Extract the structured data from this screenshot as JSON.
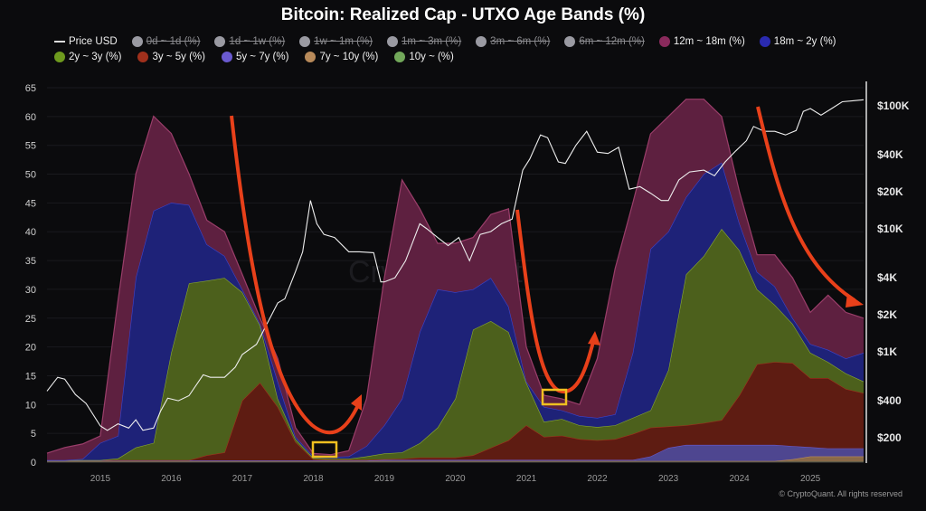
{
  "chart_data": {
    "type": "area",
    "stacked": true,
    "title": "Bitcoin: Realized Cap - UTXO Age Bands (%)",
    "xlabel": "",
    "ylabel": "",
    "xlim": [
      2014.25,
      2025.75
    ],
    "ylim": [
      0,
      65
    ],
    "y_ticks": [
      0,
      5,
      10,
      15,
      20,
      25,
      30,
      35,
      40,
      45,
      50,
      55,
      60,
      65
    ],
    "x_ticks": [
      "2015",
      "2016",
      "2017",
      "2018",
      "2019",
      "2020",
      "2021",
      "2022",
      "2023",
      "2024",
      "2025"
    ],
    "x_tick_values": [
      2015,
      2016,
      2017,
      2018,
      2019,
      2020,
      2021,
      2022,
      2023,
      2024,
      2025
    ],
    "y2_scale": "log",
    "y2_ticks": [
      {
        "label": "$100K",
        "value": 100000
      },
      {
        "label": "$40K",
        "value": 40000
      },
      {
        "label": "$20K",
        "value": 20000
      },
      {
        "label": "$10K",
        "value": 10000
      },
      {
        "label": "$4K",
        "value": 4000
      },
      {
        "label": "$2K",
        "value": 2000
      },
      {
        "label": "$1K",
        "value": 1000
      },
      {
        "label": "$400",
        "value": 400
      },
      {
        "label": "$200",
        "value": 200
      }
    ],
    "grid": true,
    "legend_position": "top-left",
    "legend": [
      {
        "label": "Price USD",
        "type": "line",
        "color": "#e0e0e0",
        "active": true
      },
      {
        "label": "0d ~ 1d (%)",
        "color": "#9a9aa2",
        "active": false
      },
      {
        "label": "1d ~ 1w (%)",
        "color": "#9a9aa2",
        "active": false
      },
      {
        "label": "1w ~ 1m (%)",
        "color": "#9a9aa2",
        "active": false
      },
      {
        "label": "1m ~ 3m (%)",
        "color": "#9a9aa2",
        "active": false
      },
      {
        "label": "3m ~ 6m (%)",
        "color": "#9a9aa2",
        "active": false
      },
      {
        "label": "6m ~ 12m (%)",
        "color": "#9a9aa2",
        "active": false
      },
      {
        "label": "12m ~ 18m (%)",
        "color": "#8a2a5c",
        "active": true
      },
      {
        "label": "18m ~ 2y (%)",
        "color": "#2a2ab0",
        "active": true
      },
      {
        "label": "2y ~ 3y (%)",
        "color": "#6e9a1e",
        "active": true
      },
      {
        "label": "3y ~ 5y (%)",
        "color": "#a0301c",
        "active": true
      },
      {
        "label": "5y ~ 7y (%)",
        "color": "#6a5ad0",
        "active": true
      },
      {
        "label": "7y ~ 10y (%)",
        "color": "#b88a5a",
        "active": true
      },
      {
        "label": "10y ~ (%)",
        "color": "#72a85a",
        "active": true
      }
    ],
    "x": [
      2014.25,
      2014.5,
      2014.75,
      2015.0,
      2015.25,
      2015.5,
      2015.75,
      2016.0,
      2016.25,
      2016.5,
      2016.75,
      2017.0,
      2017.25,
      2017.5,
      2017.75,
      2018.0,
      2018.25,
      2018.5,
      2018.75,
      2019.0,
      2019.25,
      2019.5,
      2019.75,
      2020.0,
      2020.25,
      2020.5,
      2020.75,
      2021.0,
      2021.25,
      2021.5,
      2021.75,
      2022.0,
      2022.25,
      2022.5,
      2022.75,
      2023.0,
      2023.25,
      2023.5,
      2023.75,
      2024.0,
      2024.25,
      2024.5,
      2024.75,
      2025.0,
      2025.25,
      2025.5,
      2025.75
    ],
    "series": [
      {
        "name": "10y ~ (%)",
        "fill": "#4f7a3a",
        "stroke": "#72a85a",
        "values": [
          0.1,
          0.1,
          0.1,
          0.1,
          0.1,
          0.1,
          0.1,
          0.1,
          0.1,
          0.1,
          0.1,
          0.1,
          0.1,
          0.1,
          0.1,
          0.1,
          0.1,
          0.1,
          0.1,
          0.1,
          0.1,
          0.1,
          0.1,
          0.1,
          0.1,
          0.1,
          0.1,
          0.1,
          0.1,
          0.1,
          0.1,
          0.1,
          0.1,
          0.1,
          0.1,
          0.1,
          0.1,
          0.1,
          0.1,
          0.1,
          0.1,
          0.1,
          0.1,
          0.1,
          0.1,
          0.1,
          0.1
        ]
      },
      {
        "name": "7y ~ 10y (%)",
        "fill": "#8a6a48",
        "stroke": "#b88a5a",
        "values": [
          0.1,
          0.1,
          0.1,
          0.1,
          0.1,
          0.1,
          0.1,
          0.1,
          0.1,
          0.1,
          0.1,
          0.1,
          0.1,
          0.1,
          0.1,
          0.1,
          0.1,
          0.1,
          0.1,
          0.1,
          0.1,
          0.1,
          0.1,
          0.1,
          0.1,
          0.1,
          0.1,
          0.1,
          0.1,
          0.1,
          0.1,
          0.1,
          0.1,
          0.1,
          0.1,
          0.1,
          0.1,
          0.1,
          0.1,
          0.1,
          0.1,
          0.1,
          0.4,
          0.9,
          0.9,
          0.9,
          0.9
        ]
      },
      {
        "name": "5y ~ 7y (%)",
        "fill": "#4e4690",
        "stroke": "#6a5ad0",
        "values": [
          0.1,
          0.1,
          0.1,
          0.1,
          0.1,
          0.1,
          0.1,
          0.1,
          0.1,
          0.1,
          0.1,
          0.1,
          0.1,
          0.1,
          0.1,
          0.1,
          0.1,
          0.1,
          0.1,
          0.2,
          0.2,
          0.2,
          0.2,
          0.2,
          0.2,
          0.2,
          0.2,
          0.2,
          0.2,
          0.2,
          0.2,
          0.2,
          0.2,
          0.2,
          0.8,
          2.3,
          2.8,
          2.8,
          2.8,
          2.8,
          2.8,
          2.8,
          2.3,
          1.6,
          1.4,
          1.4,
          1.4
        ]
      },
      {
        "name": "3y ~ 5y (%)",
        "fill": "#5e1c12",
        "stroke": "#a0301c",
        "values": [
          0.05,
          0.05,
          0.05,
          0.05,
          0.05,
          0.05,
          0.05,
          0.05,
          0.05,
          0.9,
          1.4,
          10.4,
          13.5,
          9.3,
          3.2,
          0.2,
          0.1,
          0.1,
          0.1,
          0.1,
          0.2,
          0.4,
          0.4,
          0.4,
          0.8,
          2.1,
          3.4,
          6.0,
          4.0,
          4.2,
          3.6,
          3.4,
          3.6,
          4.5,
          5.0,
          3.7,
          3.4,
          3.8,
          4.3,
          8.6,
          14.0,
          14.4,
          14.4,
          12.0,
          12.2,
          10.3,
          9.6
        ]
      },
      {
        "name": "2y ~ 3y (%)",
        "fill": "#4c601c",
        "stroke": "#8aaa30",
        "values": [
          0,
          0,
          0,
          0,
          0.3,
          2.2,
          3.0,
          18.7,
          30.7,
          30.3,
          30.3,
          18.8,
          9.9,
          1.4,
          0.5,
          0.2,
          0.2,
          0.2,
          0.6,
          1.0,
          1.1,
          2.5,
          5.2,
          10.2,
          21.8,
          22.0,
          18.8,
          7.4,
          2.6,
          2.9,
          2.4,
          2.3,
          2.4,
          2.8,
          3.0,
          9.8,
          26.2,
          29.0,
          33.2,
          25.2,
          13.0,
          9.9,
          6.8,
          4.4,
          2.8,
          2.7,
          2.0
        ]
      },
      {
        "name": "18m ~ 2y (%)",
        "fill": "#1e2278",
        "stroke": "#3a44d0",
        "values": [
          0,
          0,
          0.2,
          3.0,
          3.9,
          29.5,
          40.3,
          26.0,
          13.6,
          6.3,
          3.8,
          0.5,
          0.3,
          3.0,
          0.4,
          0.3,
          0.3,
          0.4,
          1.8,
          4.9,
          9.3,
          19.3,
          24.0,
          18.5,
          7.0,
          7.5,
          4.4,
          0.2,
          2.6,
          1.5,
          1.6,
          1.6,
          1.9,
          11.3,
          28.0,
          24.0,
          13.4,
          14.2,
          11.5,
          4.7,
          3.0,
          3.2,
          1.0,
          1.5,
          2.1,
          2.6,
          5.0
        ]
      },
      {
        "name": "12m ~ 18m (%)",
        "fill": "#5e2040",
        "stroke": "#9a3e6a",
        "values": [
          1.2,
          2.2,
          2.6,
          1.2,
          23.5,
          18.0,
          16.4,
          12.0,
          5.4,
          4.2,
          4.2,
          2.6,
          1.0,
          4.0,
          1.6,
          0.5,
          0.4,
          1.0,
          8.2,
          25.6,
          38.0,
          21.4,
          8.0,
          8.5,
          9.0,
          11.0,
          17.0,
          6.0,
          2.0,
          2.0,
          2.0,
          10.3,
          25.3,
          26.0,
          20.0,
          20.0,
          17.0,
          13.0,
          8.0,
          5.5,
          3.0,
          5.5,
          7.0,
          5.5,
          9.5,
          8.0,
          6.0
        ]
      }
    ],
    "price": {
      "name": "Price USD",
      "x": [
        2014.25,
        2014.4,
        2014.5,
        2014.65,
        2014.8,
        2015.0,
        2015.1,
        2015.25,
        2015.4,
        2015.5,
        2015.6,
        2015.75,
        2015.85,
        2015.95,
        2016.1,
        2016.25,
        2016.45,
        2016.55,
        2016.75,
        2016.9,
        2017.0,
        2017.2,
        2017.35,
        2017.5,
        2017.6,
        2017.75,
        2017.85,
        2017.96,
        2018.05,
        2018.15,
        2018.3,
        2018.5,
        2018.65,
        2018.85,
        2018.95,
        2019.0,
        2019.15,
        2019.3,
        2019.5,
        2019.6,
        2019.75,
        2019.9,
        2020.05,
        2020.2,
        2020.35,
        2020.5,
        2020.65,
        2020.8,
        2020.95,
        2021.05,
        2021.2,
        2021.3,
        2021.45,
        2021.55,
        2021.7,
        2021.85,
        2022.0,
        2022.15,
        2022.3,
        2022.45,
        2022.6,
        2022.75,
        2022.9,
        2023.0,
        2023.15,
        2023.3,
        2023.5,
        2023.65,
        2023.8,
        2023.95,
        2024.1,
        2024.2,
        2024.35,
        2024.5,
        2024.65,
        2024.8,
        2024.9,
        2025.0,
        2025.15,
        2025.3,
        2025.45,
        2025.6,
        2025.75
      ],
      "values": [
        480,
        620,
        600,
        450,
        380,
        250,
        230,
        260,
        240,
        280,
        230,
        240,
        330,
        420,
        400,
        440,
        650,
        620,
        620,
        750,
        950,
        1150,
        1700,
        2500,
        2700,
        4500,
        6500,
        17000,
        11000,
        9000,
        8500,
        6500,
        6500,
        6400,
        3700,
        3700,
        4000,
        5500,
        11000,
        10000,
        8500,
        7300,
        8500,
        5500,
        9000,
        9500,
        11000,
        12000,
        30000,
        37000,
        58000,
        55000,
        35000,
        34000,
        48000,
        62000,
        42000,
        41000,
        46000,
        21000,
        22000,
        19500,
        17000,
        17000,
        25000,
        29000,
        30000,
        27000,
        35000,
        43000,
        52000,
        68000,
        62000,
        62000,
        58000,
        63000,
        90000,
        95000,
        84000,
        95000,
        108000,
        110000,
        112000
      ]
    },
    "annotations": {
      "watermark": "CryptoQuant",
      "copyright": "© CryptoQuant. All rights reserved"
    }
  }
}
